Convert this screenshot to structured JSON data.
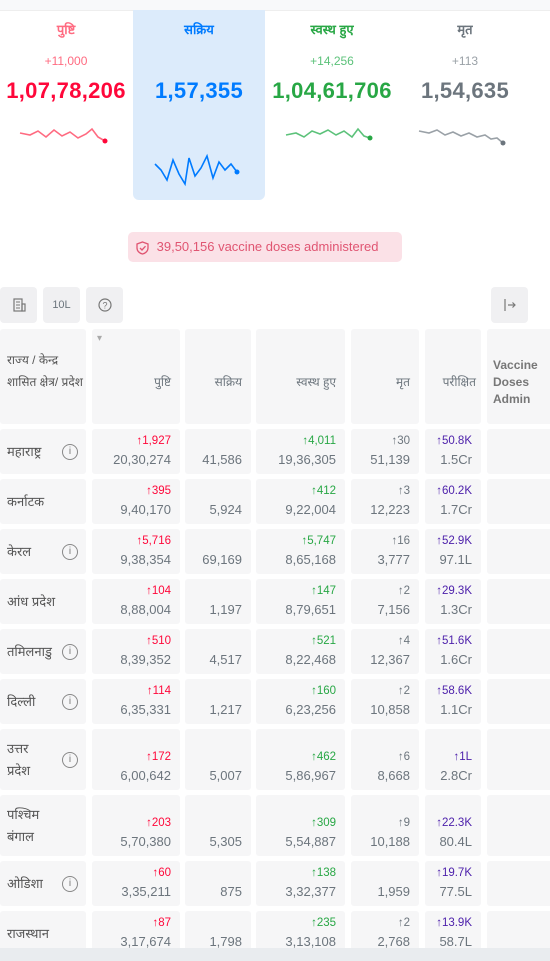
{
  "levels": [
    {
      "title": "पुष्टि",
      "delta": "+11,000",
      "total": "1,07,78,206"
    },
    {
      "title": "सक्रिय",
      "delta": "",
      "total": "1,57,355"
    },
    {
      "title": "स्वस्थ हुए",
      "delta": "+14,256",
      "total": "1,04,61,706"
    },
    {
      "title": "मृत",
      "delta": "+113",
      "total": "1,54,635"
    }
  ],
  "colors": {
    "confirmed": "#ff073a",
    "active": "#007bff",
    "recovered": "#28a745",
    "deceased": "#6c757d",
    "tested": "#4b1eaa"
  },
  "vaccine_text": "39,50,156 vaccine doses administered",
  "toolbar": {
    "per_label": "10L",
    "icons": [
      "building-icon",
      "per-lakh",
      "help-icon",
      "expand-icon"
    ]
  },
  "table": {
    "headers": [
      "राज्य / केन्द्र शासित क्षेत्र/ प्रदेश",
      "पुष्टि",
      "सक्रिय",
      "स्वस्थ हुए",
      "मृत",
      "परीक्षित",
      "Vaccine Doses Admin"
    ],
    "rows": [
      {
        "state": [
          "महाराष्ट्र"
        ],
        "info": true,
        "c_d": "↑1,927",
        "c": "20,30,274",
        "a": "41,586",
        "r_d": "↑4,011",
        "r": "19,36,305",
        "d_d": "↑30",
        "d": "51,139",
        "t_d": "↑50.8K",
        "t": "1.5Cr"
      },
      {
        "state": [
          "कर्नाटक"
        ],
        "info": false,
        "c_d": "↑395",
        "c": "9,40,170",
        "a": "5,924",
        "r_d": "↑412",
        "r": "9,22,004",
        "d_d": "↑3",
        "d": "12,223",
        "t_d": "↑60.2K",
        "t": "1.7Cr"
      },
      {
        "state": [
          "केरल"
        ],
        "info": true,
        "c_d": "↑5,716",
        "c": "9,38,354",
        "a": "69,169",
        "r_d": "↑5,747",
        "r": "8,65,168",
        "d_d": "↑16",
        "d": "3,777",
        "t_d": "↑52.9K",
        "t": "97.1L"
      },
      {
        "state": [
          "आंध प्रदेश"
        ],
        "info": false,
        "c_d": "↑104",
        "c": "8,88,004",
        "a": "1,197",
        "r_d": "↑147",
        "r": "8,79,651",
        "d_d": "↑2",
        "d": "7,156",
        "t_d": "↑29.3K",
        "t": "1.3Cr"
      },
      {
        "state": [
          "तमिलनाडु"
        ],
        "info": true,
        "c_d": "↑510",
        "c": "8,39,352",
        "a": "4,517",
        "r_d": "↑521",
        "r": "8,22,468",
        "d_d": "↑4",
        "d": "12,367",
        "t_d": "↑51.6K",
        "t": "1.6Cr"
      },
      {
        "state": [
          "दिल्ली"
        ],
        "info": true,
        "c_d": "↑114",
        "c": "6,35,331",
        "a": "1,217",
        "r_d": "↑160",
        "r": "6,23,256",
        "d_d": "↑2",
        "d": "10,858",
        "t_d": "↑58.6K",
        "t": "1.1Cr"
      },
      {
        "state": [
          "उत्तर",
          "प्रदेश"
        ],
        "info": true,
        "c_d": "↑172",
        "c": "6,00,642",
        "a": "5,007",
        "r_d": "↑462",
        "r": "5,86,967",
        "d_d": "↑6",
        "d": "8,668",
        "t_d": "↑1L",
        "t": "2.8Cr"
      },
      {
        "state": [
          "पश्चिम",
          "बंगाल"
        ],
        "info": false,
        "c_d": "↑203",
        "c": "5,70,380",
        "a": "5,305",
        "r_d": "↑309",
        "r": "5,54,887",
        "d_d": "↑9",
        "d": "10,188",
        "t_d": "↑22.3K",
        "t": "80.4L"
      },
      {
        "state": [
          "ओडिशा"
        ],
        "info": true,
        "c_d": "↑60",
        "c": "3,35,211",
        "a": "875",
        "r_d": "↑138",
        "r": "3,32,377",
        "d_d": "",
        "d": "1,959",
        "t_d": "↑19.7K",
        "t": "77.5L"
      },
      {
        "state": [
          "राजस्थान"
        ],
        "info": false,
        "c_d": "↑87",
        "c": "3,17,674",
        "a": "1,798",
        "r_d": "↑235",
        "r": "3,13,108",
        "d_d": "↑2",
        "d": "2,768",
        "t_d": "↑13.9K",
        "t": "58.7L"
      }
    ]
  }
}
